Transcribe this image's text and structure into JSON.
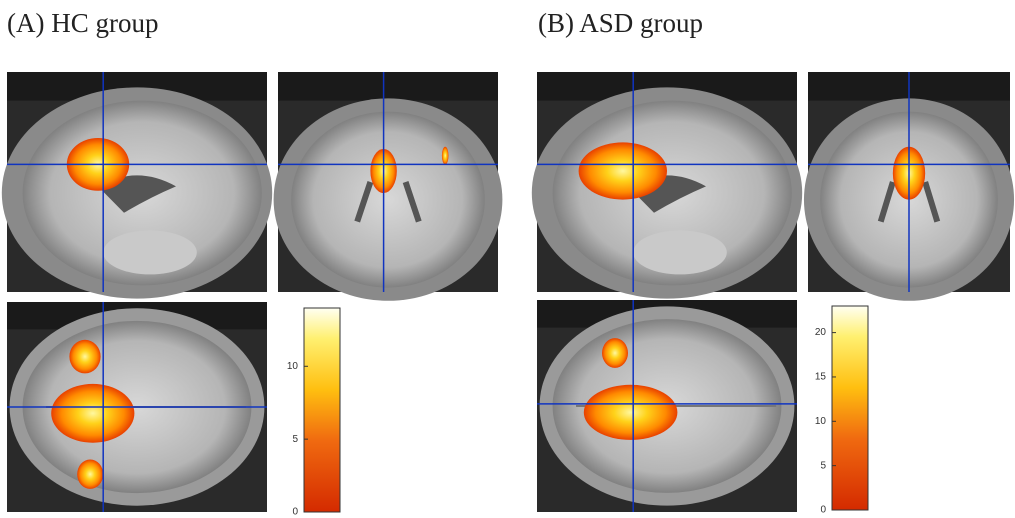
{
  "panels": [
    {
      "title": "(A) HC group",
      "colorbar": {
        "lim": [
          0,
          14
        ],
        "ticks": [
          0,
          5,
          10
        ]
      }
    },
    {
      "title": "(B) ASD group",
      "colorbar": {
        "lim": [
          0,
          23
        ],
        "ticks": [
          0,
          5,
          10,
          15,
          20
        ]
      }
    }
  ]
}
